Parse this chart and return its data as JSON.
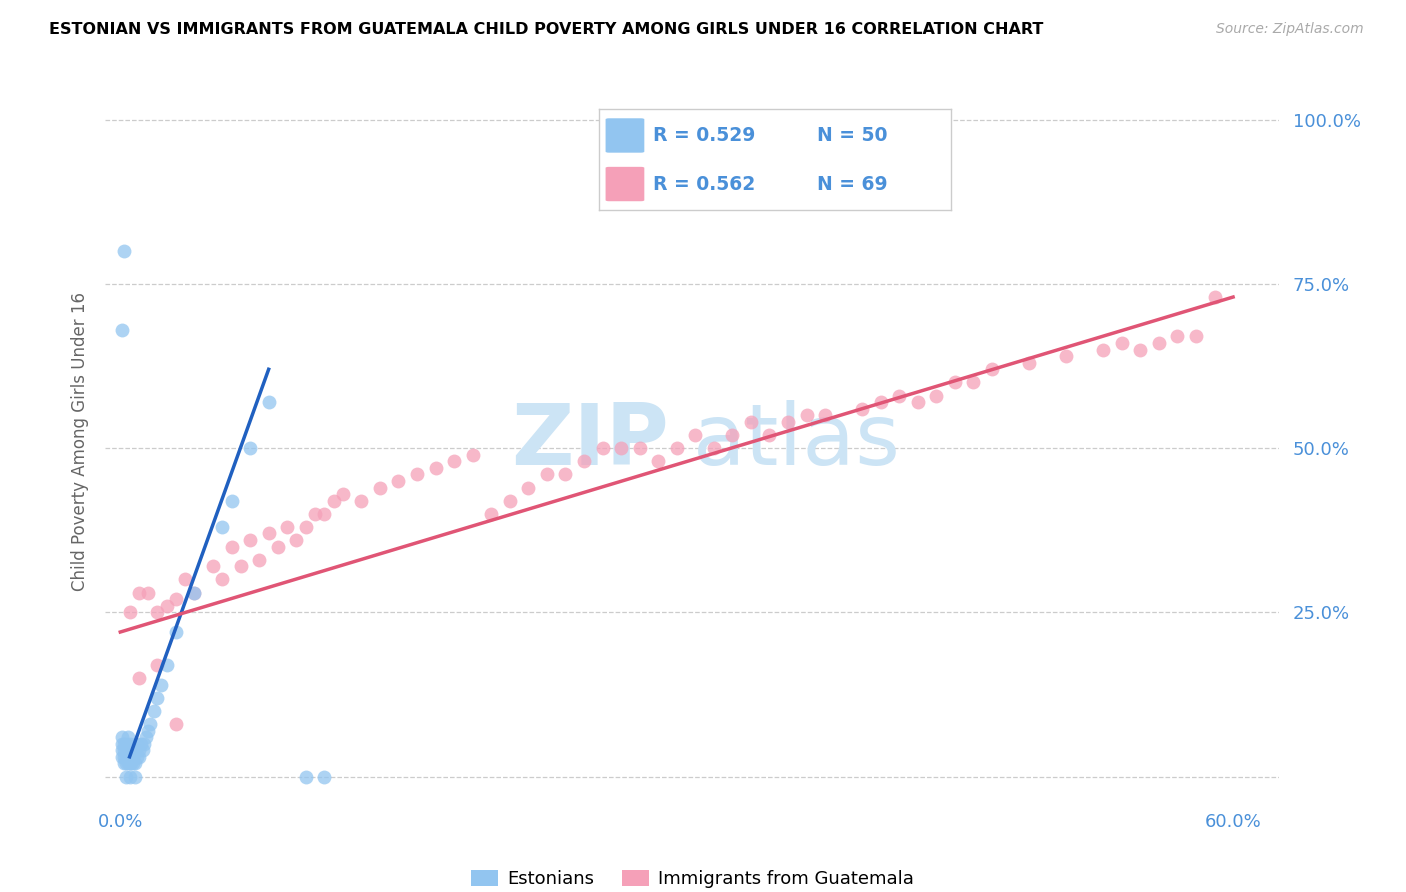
{
  "title": "ESTONIAN VS IMMIGRANTS FROM GUATEMALA CHILD POVERTY AMONG GIRLS UNDER 16 CORRELATION CHART",
  "source": "Source: ZipAtlas.com",
  "ylabel": "Child Poverty Among Girls Under 16",
  "color_blue": "#92c5f0",
  "color_pink": "#f5a0b8",
  "color_blue_line": "#2060c0",
  "color_pink_line": "#e05575",
  "color_blue_text": "#4a90d9",
  "watermark_zip": "ZIP",
  "watermark_atlas": "atlas",
  "watermark_color": "#cce4f5",
  "legend_R1": "R = 0.529",
  "legend_N1": "N = 50",
  "legend_R2": "R = 0.562",
  "legend_N2": "N = 69",
  "est_x": [
    0.001,
    0.001,
    0.001,
    0.001,
    0.002,
    0.002,
    0.002,
    0.002,
    0.003,
    0.003,
    0.003,
    0.004,
    0.004,
    0.004,
    0.005,
    0.005,
    0.005,
    0.006,
    0.006,
    0.007,
    0.007,
    0.008,
    0.008,
    0.009,
    0.009,
    0.01,
    0.01,
    0.011,
    0.012,
    0.013,
    0.014,
    0.015,
    0.016,
    0.018,
    0.02,
    0.022,
    0.025,
    0.03,
    0.04,
    0.055,
    0.06,
    0.07,
    0.08,
    0.1,
    0.11,
    0.001,
    0.002,
    0.003,
    0.005,
    0.008
  ],
  "est_y": [
    0.03,
    0.04,
    0.05,
    0.06,
    0.02,
    0.03,
    0.04,
    0.05,
    0.02,
    0.03,
    0.05,
    0.02,
    0.04,
    0.06,
    0.02,
    0.03,
    0.05,
    0.02,
    0.04,
    0.02,
    0.03,
    0.02,
    0.04,
    0.03,
    0.05,
    0.03,
    0.04,
    0.05,
    0.04,
    0.05,
    0.06,
    0.07,
    0.08,
    0.1,
    0.12,
    0.14,
    0.17,
    0.22,
    0.28,
    0.38,
    0.42,
    0.5,
    0.57,
    0.0,
    0.0,
    0.68,
    0.8,
    0.0,
    0.0,
    0.0
  ],
  "blue_line_x": [
    0.005,
    0.08
  ],
  "blue_line_y": [
    0.03,
    0.62
  ],
  "guat_x": [
    0.005,
    0.01,
    0.015,
    0.02,
    0.025,
    0.03,
    0.035,
    0.04,
    0.05,
    0.055,
    0.06,
    0.065,
    0.07,
    0.075,
    0.08,
    0.085,
    0.09,
    0.095,
    0.1,
    0.105,
    0.11,
    0.115,
    0.12,
    0.13,
    0.14,
    0.15,
    0.16,
    0.17,
    0.18,
    0.19,
    0.2,
    0.21,
    0.22,
    0.23,
    0.24,
    0.25,
    0.26,
    0.27,
    0.28,
    0.29,
    0.3,
    0.31,
    0.32,
    0.33,
    0.34,
    0.35,
    0.36,
    0.37,
    0.38,
    0.4,
    0.41,
    0.42,
    0.43,
    0.44,
    0.45,
    0.46,
    0.47,
    0.49,
    0.51,
    0.53,
    0.54,
    0.55,
    0.56,
    0.57,
    0.58,
    0.59,
    0.01,
    0.02,
    0.03
  ],
  "guat_y": [
    0.25,
    0.28,
    0.28,
    0.25,
    0.26,
    0.27,
    0.3,
    0.28,
    0.32,
    0.3,
    0.35,
    0.32,
    0.36,
    0.33,
    0.37,
    0.35,
    0.38,
    0.36,
    0.38,
    0.4,
    0.4,
    0.42,
    0.43,
    0.42,
    0.44,
    0.45,
    0.46,
    0.47,
    0.48,
    0.49,
    0.4,
    0.42,
    0.44,
    0.46,
    0.46,
    0.48,
    0.5,
    0.5,
    0.5,
    0.48,
    0.5,
    0.52,
    0.5,
    0.52,
    0.54,
    0.52,
    0.54,
    0.55,
    0.55,
    0.56,
    0.57,
    0.58,
    0.57,
    0.58,
    0.6,
    0.6,
    0.62,
    0.63,
    0.64,
    0.65,
    0.66,
    0.65,
    0.66,
    0.67,
    0.67,
    0.73,
    0.15,
    0.17,
    0.08
  ],
  "pink_line_x": [
    0.0,
    0.6
  ],
  "pink_line_y": [
    0.22,
    0.73
  ],
  "x_ticks": [
    0.0,
    0.1,
    0.2,
    0.3,
    0.4,
    0.5,
    0.6
  ],
  "x_tick_labels": [
    "0.0%",
    "",
    "",
    "",
    "",
    "",
    "60.0%"
  ],
  "y_ticks": [
    0.0,
    0.25,
    0.5,
    0.75,
    1.0
  ],
  "y_tick_labels": [
    "",
    "25.0%",
    "50.0%",
    "75.0%",
    "100.0%"
  ]
}
